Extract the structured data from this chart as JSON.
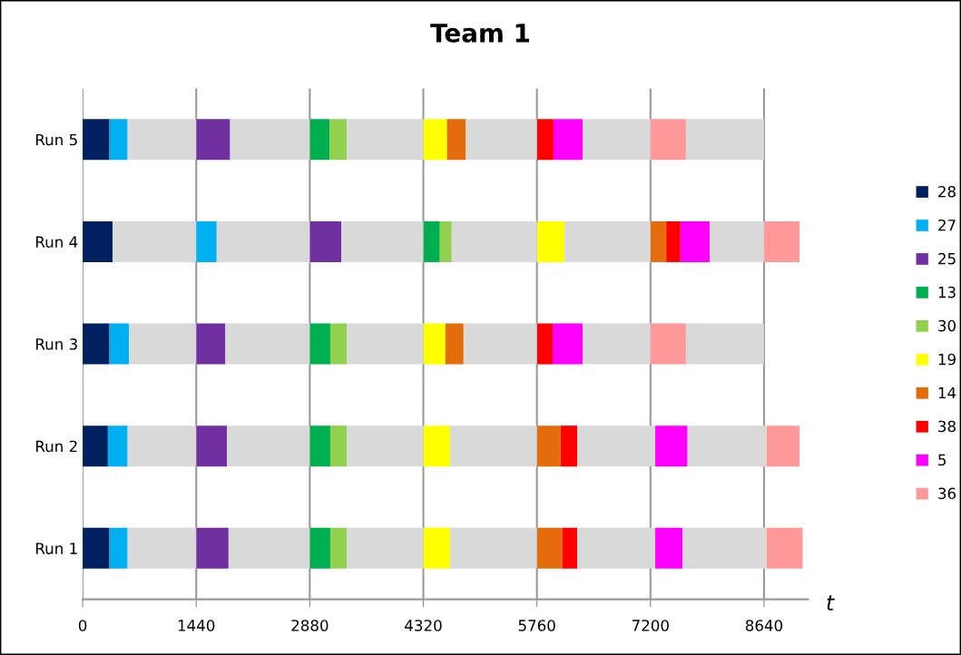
{
  "chart_data": {
    "type": "bar",
    "orientation": "horizontal",
    "title": "Team 1",
    "xlabel": "t",
    "categories": [
      "Run 5",
      "Run 4",
      "Run 3",
      "Run 2",
      "Run 1"
    ],
    "xlim": [
      0,
      9200
    ],
    "xticks": [
      0,
      1440,
      2880,
      4320,
      5760,
      7200,
      8640
    ],
    "grid": "x",
    "legend": "right",
    "series": [
      {
        "name": "28",
        "color": "#002060",
        "base": [
          0,
          0,
          0,
          0,
          0
        ],
        "values": [
          340,
          380,
          340,
          320,
          340
        ]
      },
      {
        "name": "27",
        "color": "#00b0f0",
        "base": [
          340,
          1440,
          340,
          320,
          340
        ],
        "values": [
          230,
          260,
          250,
          250,
          230
        ]
      },
      {
        "name": "25",
        "color": "#7030a0",
        "base": [
          1440,
          2880,
          1440,
          1440,
          1440
        ],
        "values": [
          430,
          400,
          370,
          390,
          410
        ]
      },
      {
        "name": "13",
        "color": "#00b050",
        "base": [
          2880,
          4320,
          2880,
          2880,
          2880
        ],
        "values": [
          250,
          210,
          260,
          260,
          260
        ]
      },
      {
        "name": "30",
        "color": "#92d050",
        "base": [
          3130,
          4530,
          3140,
          3140,
          3140
        ],
        "values": [
          220,
          150,
          210,
          210,
          210
        ]
      },
      {
        "name": "19",
        "color": "#ffff00",
        "base": [
          4320,
          5760,
          4320,
          4320,
          4320
        ],
        "values": [
          300,
          350,
          280,
          340,
          340
        ]
      },
      {
        "name": "14",
        "color": "#e46c0a",
        "base": [
          4620,
          7200,
          4600,
          5760,
          5760
        ],
        "values": [
          240,
          200,
          230,
          300,
          320
        ]
      },
      {
        "name": "38",
        "color": "#ff0000",
        "base": [
          5760,
          7400,
          5760,
          6060,
          6080
        ],
        "values": [
          210,
          180,
          200,
          210,
          190
        ]
      },
      {
        "name": "5",
        "color": "#ff00ff",
        "base": [
          5970,
          7580,
          5960,
          7260,
          7260
        ],
        "values": [
          370,
          370,
          380,
          410,
          350
        ]
      },
      {
        "name": "36",
        "color": "#ff9999",
        "base": [
          7200,
          8640,
          7200,
          8670,
          8670
        ],
        "values": [
          450,
          450,
          450,
          420,
          460
        ]
      },
      {
        "color": "#d9d9d9",
        "base": [
          570,
          380,
          590,
          570,
          570
        ],
        "values": [
          870,
          1060,
          850,
          870,
          870
        ]
      },
      {
        "color": "#d9d9d9",
        "base": [
          1870,
          1700,
          1810,
          1830,
          1850
        ],
        "values": [
          1010,
          1180,
          1070,
          1050,
          1030
        ]
      },
      {
        "color": "#d9d9d9",
        "base": [
          3350,
          3280,
          3350,
          3350,
          3350
        ],
        "values": [
          970,
          1040,
          970,
          970,
          970
        ]
      },
      {
        "color": "#d9d9d9",
        "base": [
          4860,
          4680,
          4830,
          4660,
          4660
        ],
        "values": [
          900,
          1080,
          930,
          1100,
          1100
        ]
      },
      {
        "color": "#d9d9d9",
        "base": [
          6340,
          6110,
          6340,
          6270,
          6270
        ],
        "values": [
          860,
          1090,
          860,
          990,
          990
        ]
      },
      {
        "color": "#d9d9d9",
        "base": [
          7650,
          7950,
          7650,
          7670,
          7610
        ],
        "values": [
          990,
          690,
          990,
          1000,
          1060
        ]
      }
    ]
  }
}
